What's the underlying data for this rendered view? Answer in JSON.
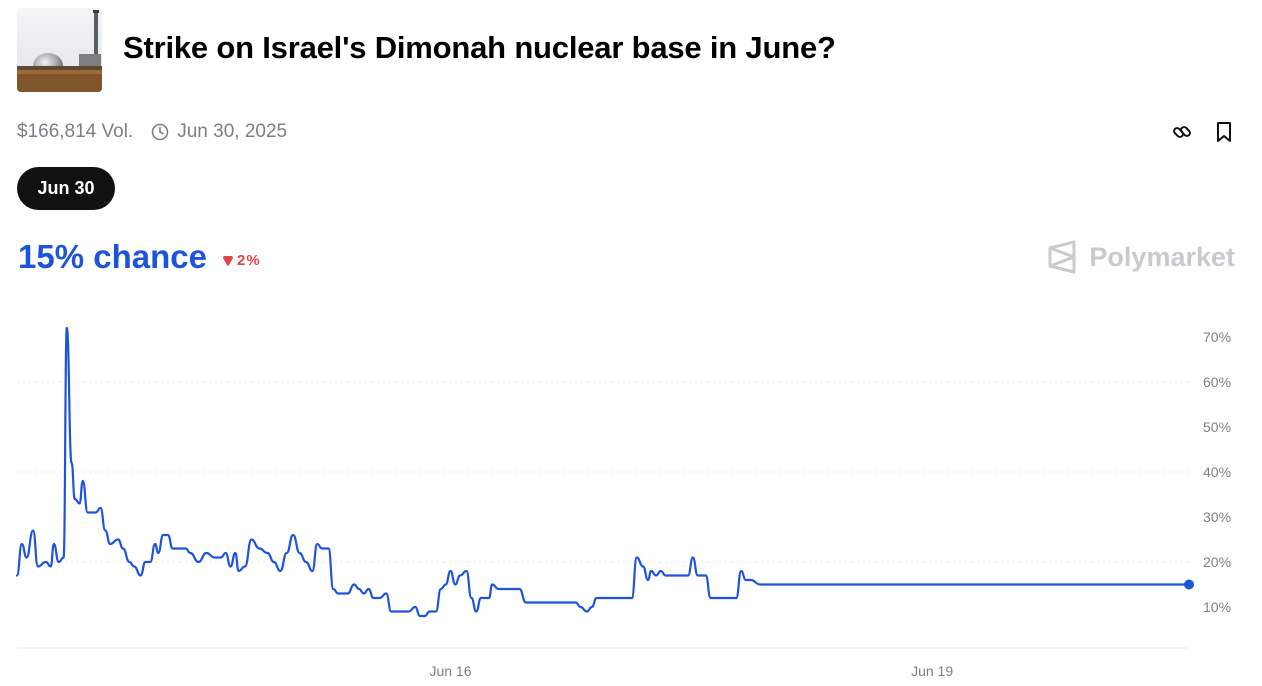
{
  "market": {
    "title": "Strike on Israel's Dimonah nuclear base in June?",
    "volume": "$166,814 Vol.",
    "end_date": "Jun 30, 2025",
    "date_pill": "Jun 30",
    "chance": "15% chance",
    "delta": "2%",
    "brand": "Polymarket"
  },
  "icons": {
    "clock": "clock-icon",
    "link": "link-icon",
    "bookmark": "bookmark-icon",
    "delta": "down-triangle-icon",
    "brand": "polymarket-logo-icon"
  },
  "colors": {
    "line": "#1e54d8",
    "down": "#e0434b",
    "pill_bg": "#111111",
    "grid": "#dfe1e5",
    "tick": "#7b7f86"
  },
  "chart_data": {
    "type": "line",
    "title": "",
    "xlabel": "",
    "ylabel": "",
    "ylim": [
      0,
      75
    ],
    "yticks": [
      "10%",
      "20%",
      "30%",
      "40%",
      "50%",
      "60%",
      "70%"
    ],
    "ytick_values": [
      10,
      20,
      30,
      40,
      50,
      60,
      70
    ],
    "xticks": [
      {
        "label": "Jun 16",
        "x": 16.0
      },
      {
        "label": "Jun 19",
        "x": 19.0
      }
    ],
    "xlim": [
      13.3,
      20.6
    ],
    "grid": true,
    "y_axis_side": "right",
    "series": [
      {
        "values": [
          [
            13.3,
            17
          ],
          [
            13.33,
            24
          ],
          [
            13.36,
            21
          ],
          [
            13.4,
            27
          ],
          [
            13.43,
            19
          ],
          [
            13.48,
            20
          ],
          [
            13.51,
            19
          ],
          [
            13.53,
            24
          ],
          [
            13.56,
            20
          ],
          [
            13.59,
            21
          ],
          [
            13.61,
            72
          ],
          [
            13.64,
            42
          ],
          [
            13.66,
            34
          ],
          [
            13.69,
            33
          ],
          [
            13.71,
            38
          ],
          [
            13.74,
            31
          ],
          [
            13.79,
            31
          ],
          [
            13.82,
            32
          ],
          [
            13.85,
            27
          ],
          [
            13.88,
            24
          ],
          [
            13.93,
            25
          ],
          [
            13.96,
            23
          ],
          [
            14.0,
            20
          ],
          [
            14.03,
            19
          ],
          [
            14.07,
            17
          ],
          [
            14.1,
            20
          ],
          [
            14.13,
            20
          ],
          [
            14.16,
            24
          ],
          [
            14.18,
            22
          ],
          [
            14.21,
            26
          ],
          [
            14.24,
            26
          ],
          [
            14.27,
            23
          ],
          [
            14.3,
            23
          ],
          [
            14.35,
            23
          ],
          [
            14.38,
            22
          ],
          [
            14.43,
            20
          ],
          [
            14.48,
            22
          ],
          [
            14.53,
            21
          ],
          [
            14.57,
            21
          ],
          [
            14.6,
            22
          ],
          [
            14.63,
            19
          ],
          [
            14.66,
            22
          ],
          [
            14.68,
            18
          ],
          [
            14.72,
            19
          ],
          [
            14.76,
            25
          ],
          [
            14.81,
            23
          ],
          [
            14.86,
            22
          ],
          [
            14.9,
            20
          ],
          [
            14.94,
            18
          ],
          [
            14.98,
            22
          ],
          [
            15.02,
            26
          ],
          [
            15.06,
            22
          ],
          [
            15.1,
            20
          ],
          [
            15.14,
            18
          ],
          [
            15.17,
            24
          ],
          [
            15.2,
            23
          ],
          [
            15.24,
            23
          ],
          [
            15.27,
            14
          ],
          [
            15.3,
            13
          ],
          [
            15.36,
            13
          ],
          [
            15.4,
            15
          ],
          [
            15.43,
            14
          ],
          [
            15.46,
            13
          ],
          [
            15.49,
            14
          ],
          [
            15.52,
            12
          ],
          [
            15.56,
            12
          ],
          [
            15.6,
            13
          ],
          [
            15.63,
            9
          ],
          [
            15.74,
            9
          ],
          [
            15.78,
            10
          ],
          [
            15.81,
            8
          ],
          [
            15.84,
            8
          ],
          [
            15.87,
            9
          ],
          [
            15.91,
            9
          ],
          [
            15.94,
            14
          ],
          [
            15.97,
            15
          ],
          [
            16.0,
            18
          ],
          [
            16.03,
            15
          ],
          [
            16.06,
            17
          ],
          [
            16.1,
            18
          ],
          [
            16.13,
            12
          ],
          [
            16.16,
            9
          ],
          [
            16.19,
            12
          ],
          [
            16.24,
            12
          ],
          [
            16.26,
            15
          ],
          [
            16.3,
            14
          ],
          [
            16.33,
            14
          ],
          [
            16.43,
            14
          ],
          [
            16.47,
            11
          ],
          [
            16.78,
            11
          ],
          [
            16.81,
            10
          ],
          [
            16.85,
            9
          ],
          [
            16.88,
            10
          ],
          [
            16.91,
            12
          ],
          [
            17.0,
            12
          ],
          [
            17.13,
            12
          ],
          [
            17.16,
            21
          ],
          [
            17.2,
            19
          ],
          [
            17.23,
            16
          ],
          [
            17.25,
            18
          ],
          [
            17.28,
            17
          ],
          [
            17.31,
            18
          ],
          [
            17.34,
            17
          ],
          [
            17.48,
            17
          ],
          [
            17.51,
            21
          ],
          [
            17.54,
            17
          ],
          [
            17.59,
            17
          ],
          [
            17.62,
            12
          ],
          [
            17.66,
            12
          ],
          [
            17.78,
            12
          ],
          [
            17.81,
            18
          ],
          [
            17.84,
            16
          ],
          [
            17.87,
            16
          ],
          [
            17.93,
            15
          ]
        ]
      }
    ],
    "last_value": 15
  }
}
